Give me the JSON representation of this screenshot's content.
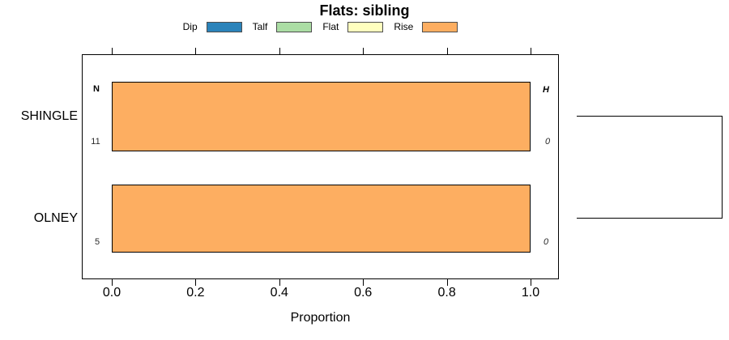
{
  "title": "Flats: sibling",
  "legend": [
    {
      "label": "Dip",
      "color": "#2B83BA"
    },
    {
      "label": "Talf",
      "color": "#ABDDA4"
    },
    {
      "label": "Flat",
      "color": "#FFFFBF"
    },
    {
      "label": "Rise",
      "color": "#FDAE61"
    }
  ],
  "axis": {
    "xlabel": "Proportion",
    "tick_labels": [
      "0.0",
      "0.2",
      "0.4",
      "0.6",
      "0.8",
      "1.0"
    ]
  },
  "chart_data": {
    "type": "bar",
    "orientation": "horizontal",
    "stacked": true,
    "title": "Flats: sibling",
    "xlabel": "Proportion",
    "xlim": [
      0,
      1
    ],
    "xticks": [
      0.0,
      0.2,
      0.4,
      0.6,
      0.8,
      1.0
    ],
    "grid": false,
    "legend_position": "top",
    "categories": [
      "SHINGLE",
      "OLNEY"
    ],
    "series": [
      {
        "name": "Dip",
        "color": "#2B83BA",
        "values": [
          0,
          0
        ]
      },
      {
        "name": "Talf",
        "color": "#ABDDA4",
        "values": [
          0,
          0
        ]
      },
      {
        "name": "Flat",
        "color": "#FFFFBF",
        "values": [
          0,
          0
        ]
      },
      {
        "name": "Rise",
        "color": "#FDAE61",
        "values": [
          1.0,
          1.0
        ]
      }
    ],
    "row_stats": {
      "left_header": "N",
      "right_header": "H",
      "rows": [
        {
          "category": "SHINGLE",
          "n": "11",
          "h": "0"
        },
        {
          "category": "OLNEY",
          "n": "5",
          "h": "0"
        }
      ]
    },
    "dendrogram": {
      "connects": [
        "SHINGLE",
        "OLNEY"
      ]
    }
  }
}
